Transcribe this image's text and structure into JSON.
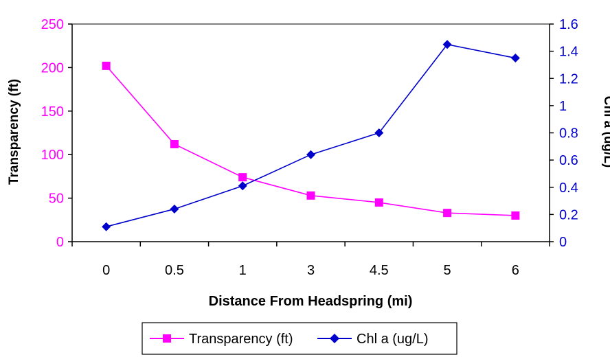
{
  "chart_data": {
    "type": "line",
    "categories": [
      "0",
      "0.5",
      "1",
      "3",
      "4.5",
      "5",
      "6"
    ],
    "xlabel": "Distance From Headspring (mi)",
    "y_left": {
      "label": "Transparency (ft)",
      "range": [
        0,
        250
      ],
      "ticks": [
        "0",
        "50",
        "100",
        "150",
        "200",
        "250"
      ],
      "color": "#FF00FF"
    },
    "y_right": {
      "label": "Chl a (ug/L)",
      "range": [
        0,
        1.6
      ],
      "ticks": [
        "0",
        "0.2",
        "0.4",
        "0.6",
        "0.8",
        "1",
        "1.2",
        "1.4",
        "1.6"
      ],
      "color": "#0000CC"
    },
    "series": [
      {
        "name": "Transparency (ft)",
        "axis": "left",
        "marker": "square",
        "color": "#FF00FF",
        "values": [
          202,
          112,
          74,
          53,
          45,
          33,
          30
        ]
      },
      {
        "name": "Chl a (ug/L)",
        "axis": "right",
        "marker": "diamond",
        "color": "#0000CC",
        "values": [
          0.11,
          0.24,
          0.41,
          0.64,
          0.8,
          1.45,
          1.35
        ]
      }
    ],
    "legend": "bottom-center",
    "grid": false
  }
}
